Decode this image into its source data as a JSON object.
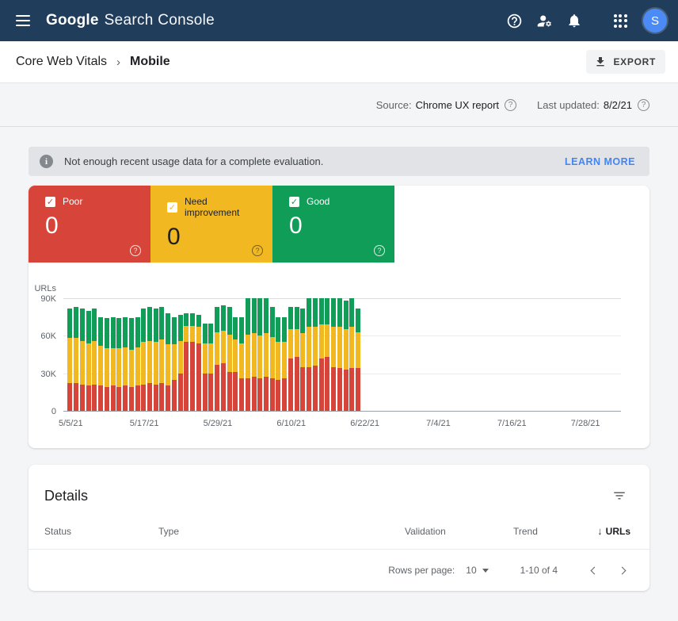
{
  "topbar": {
    "logo_google": "Google",
    "logo_product": "Search Console",
    "avatar_initial": "S"
  },
  "breadcrumb": {
    "parent": "Core Web Vitals",
    "separator": "›",
    "current": "Mobile",
    "export_label": "EXPORT"
  },
  "meta": {
    "source_label": "Source:",
    "source_value": "Chrome UX report",
    "updated_label": "Last updated:",
    "updated_value": "8/2/21"
  },
  "banner": {
    "message": "Not enough recent usage data for a complete evaluation.",
    "action_label": "LEARN MORE"
  },
  "colors": {
    "masthead": "#203d5c",
    "link_blue": "#4285f4",
    "poor": "#d7453a",
    "need_improvement": "#f2b822",
    "good": "#0f9d58"
  },
  "tiles": [
    {
      "label": "Poor",
      "value": "0",
      "color": "#d7453a",
      "text_color": "#ffffff"
    },
    {
      "label": "Need improvement",
      "value": "0",
      "color": "#f2b822",
      "text_color": "#202124"
    },
    {
      "label": "Good",
      "value": "0",
      "color": "#0f9d58",
      "text_color": "#ffffff"
    }
  ],
  "chart_data": {
    "type": "bar",
    "stacked": true,
    "ylabel": "URLs",
    "values_unit": "thousands",
    "ylim_k": [
      0,
      90
    ],
    "ytick_values_k": [
      90,
      60,
      30,
      0
    ],
    "ytick_labels": [
      "90K",
      "60K",
      "30K",
      "0"
    ],
    "xticks": [
      "5/5/21",
      "5/17/21",
      "5/29/21",
      "6/10/21",
      "6/22/21",
      "7/4/21",
      "7/16/21",
      "7/28/21"
    ],
    "xtick_days": [
      0,
      12,
      24,
      36,
      48,
      60,
      72,
      84
    ],
    "x_axis_days_span": 91,
    "legend_position": "none",
    "bar_dates": [
      "5/5/21",
      "5/6/21",
      "5/7/21",
      "5/8/21",
      "5/9/21",
      "5/10/21",
      "5/11/21",
      "5/12/21",
      "5/13/21",
      "5/14/21",
      "5/15/21",
      "5/16/21",
      "5/17/21",
      "5/18/21",
      "5/19/21",
      "5/20/21",
      "5/21/21",
      "5/22/21",
      "5/23/21",
      "5/24/21",
      "5/25/21",
      "5/26/21",
      "5/27/21",
      "5/28/21",
      "5/29/21",
      "5/30/21",
      "5/31/21",
      "6/1/21",
      "6/2/21",
      "6/3/21",
      "6/4/21",
      "6/5/21",
      "6/6/21",
      "6/7/21",
      "6/8/21",
      "6/9/21",
      "6/10/21",
      "6/11/21",
      "6/12/21",
      "6/13/21",
      "6/14/21",
      "6/15/21",
      "6/16/21",
      "6/17/21",
      "6/18/21",
      "6/19/21",
      "6/20/21",
      "6/21/21"
    ],
    "series": [
      {
        "name": "Poor",
        "color": "#d7453a",
        "values_k": [
          22,
          22,
          21,
          20,
          21,
          20,
          19,
          20,
          19,
          20,
          19,
          20,
          21,
          22,
          21,
          22,
          20,
          25,
          30,
          55,
          55,
          54,
          30,
          30,
          37,
          38,
          31,
          31,
          26,
          26,
          27,
          26,
          27,
          26,
          25,
          26,
          42,
          43,
          35,
          35,
          36,
          42,
          43,
          35,
          34,
          33,
          34,
          34
        ]
      },
      {
        "name": "Need improvement",
        "color": "#f2b822",
        "values_k": [
          36,
          36,
          35,
          34,
          35,
          32,
          31,
          30,
          31,
          31,
          30,
          31,
          34,
          34,
          34,
          35,
          33,
          28,
          26,
          13,
          13,
          13,
          24,
          24,
          26,
          26,
          30,
          26,
          28,
          35,
          35,
          34,
          35,
          33,
          30,
          29,
          23,
          22,
          27,
          32,
          31,
          27,
          26,
          32,
          33,
          32,
          33,
          29
        ]
      },
      {
        "name": "Good",
        "color": "#0f9d58",
        "values_k": [
          24,
          25,
          26,
          26,
          26,
          23,
          24,
          25,
          24,
          24,
          25,
          24,
          27,
          27,
          27,
          26,
          25,
          22,
          21,
          10,
          10,
          10,
          16,
          16,
          20,
          20,
          22,
          18,
          21,
          29,
          28,
          30,
          28,
          24,
          20,
          20,
          18,
          18,
          20,
          23,
          23,
          21,
          21,
          23,
          23,
          23,
          23,
          19
        ]
      }
    ]
  },
  "details": {
    "title": "Details",
    "columns": [
      {
        "label": "Status"
      },
      {
        "label": "Type"
      },
      {
        "label": "Validation"
      },
      {
        "label": "Trend"
      },
      {
        "label": "URLs",
        "sorted": true,
        "sort_arrow": "↓"
      }
    ],
    "pagination": {
      "rows_per_page_label": "Rows per page:",
      "rows_per_page_value": "10",
      "range_text": "1-10 of 4"
    }
  }
}
